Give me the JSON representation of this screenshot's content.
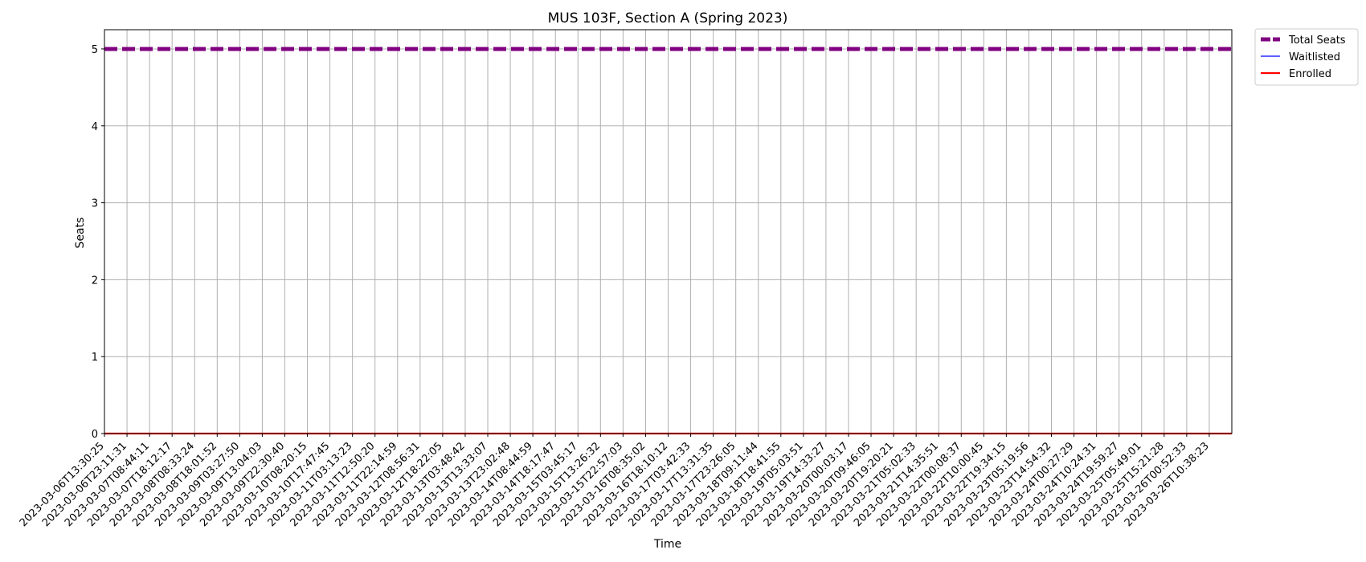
{
  "chart_data": {
    "type": "line",
    "title": "MUS 103F, Section A (Spring 2023)",
    "xlabel": "Time",
    "ylabel": "Seats",
    "ylim": [
      0,
      5.25
    ],
    "yticks": [
      0,
      1,
      2,
      3,
      4,
      5
    ],
    "grid": true,
    "legend_placement": "outside top-right",
    "x": [
      "2023-03-06T13:30:25",
      "2023-03-06T23:11:31",
      "2023-03-07T08:44:11",
      "2023-03-07T18:12:17",
      "2023-03-08T08:33:24",
      "2023-03-08T18:01:52",
      "2023-03-09T03:27:50",
      "2023-03-09T13:04:03",
      "2023-03-09T22:30:40",
      "2023-03-10T08:20:15",
      "2023-03-10T17:47:45",
      "2023-03-11T03:13:23",
      "2023-03-11T12:50:20",
      "2023-03-11T22:14:59",
      "2023-03-12T08:56:31",
      "2023-03-12T18:22:05",
      "2023-03-13T03:48:42",
      "2023-03-13T13:33:07",
      "2023-03-13T23:02:48",
      "2023-03-14T08:44:59",
      "2023-03-14T18:17:47",
      "2023-03-15T03:45:17",
      "2023-03-15T13:26:32",
      "2023-03-15T22:57:03",
      "2023-03-16T08:35:02",
      "2023-03-16T18:10:12",
      "2023-03-17T03:42:33",
      "2023-03-17T13:31:35",
      "2023-03-17T23:26:05",
      "2023-03-18T09:11:44",
      "2023-03-18T18:41:55",
      "2023-03-19T05:03:51",
      "2023-03-19T14:33:27",
      "2023-03-20T00:03:17",
      "2023-03-20T09:46:05",
      "2023-03-20T19:20:21",
      "2023-03-21T05:02:33",
      "2023-03-21T14:35:51",
      "2023-03-22T00:08:37",
      "2023-03-22T10:00:45",
      "2023-03-22T19:34:15",
      "2023-03-23T05:19:56",
      "2023-03-23T14:54:32",
      "2023-03-24T00:27:29",
      "2023-03-24T10:24:31",
      "2023-03-24T19:59:27",
      "2023-03-25T05:49:01",
      "2023-03-25T15:21:28",
      "2023-03-26T00:52:33",
      "2023-03-26T10:38:23"
    ],
    "series": [
      {
        "name": "Total Seats",
        "color": "#800080",
        "style": "dashed-thick",
        "values": [
          5,
          5,
          5,
          5,
          5,
          5,
          5,
          5,
          5,
          5,
          5,
          5,
          5,
          5,
          5,
          5,
          5,
          5,
          5,
          5,
          5,
          5,
          5,
          5,
          5,
          5,
          5,
          5,
          5,
          5,
          5,
          5,
          5,
          5,
          5,
          5,
          5,
          5,
          5,
          5,
          5,
          5,
          5,
          5,
          5,
          5,
          5,
          5,
          5,
          5
        ]
      },
      {
        "name": "Waitlisted",
        "color": "#0000ff",
        "style": "solid-thin",
        "values": [
          0,
          0,
          0,
          0,
          0,
          0,
          0,
          0,
          0,
          0,
          0,
          0,
          0,
          0,
          0,
          0,
          0,
          0,
          0,
          0,
          0,
          0,
          0,
          0,
          0,
          0,
          0,
          0,
          0,
          0,
          0,
          0,
          0,
          0,
          0,
          0,
          0,
          0,
          0,
          0,
          0,
          0,
          0,
          0,
          0,
          0,
          0,
          0,
          0,
          0
        ]
      },
      {
        "name": "Enrolled",
        "color": "#ff0000",
        "style": "solid",
        "values": [
          0,
          0,
          0,
          0,
          0,
          0,
          0,
          0,
          0,
          0,
          0,
          0,
          0,
          0,
          0,
          0,
          0,
          0,
          0,
          0,
          0,
          0,
          0,
          0,
          0,
          0,
          0,
          0,
          0,
          0,
          0,
          0,
          0,
          0,
          0,
          0,
          0,
          0,
          0,
          0,
          0,
          0,
          0,
          0,
          0,
          0,
          0,
          0,
          0,
          0
        ]
      }
    ]
  }
}
